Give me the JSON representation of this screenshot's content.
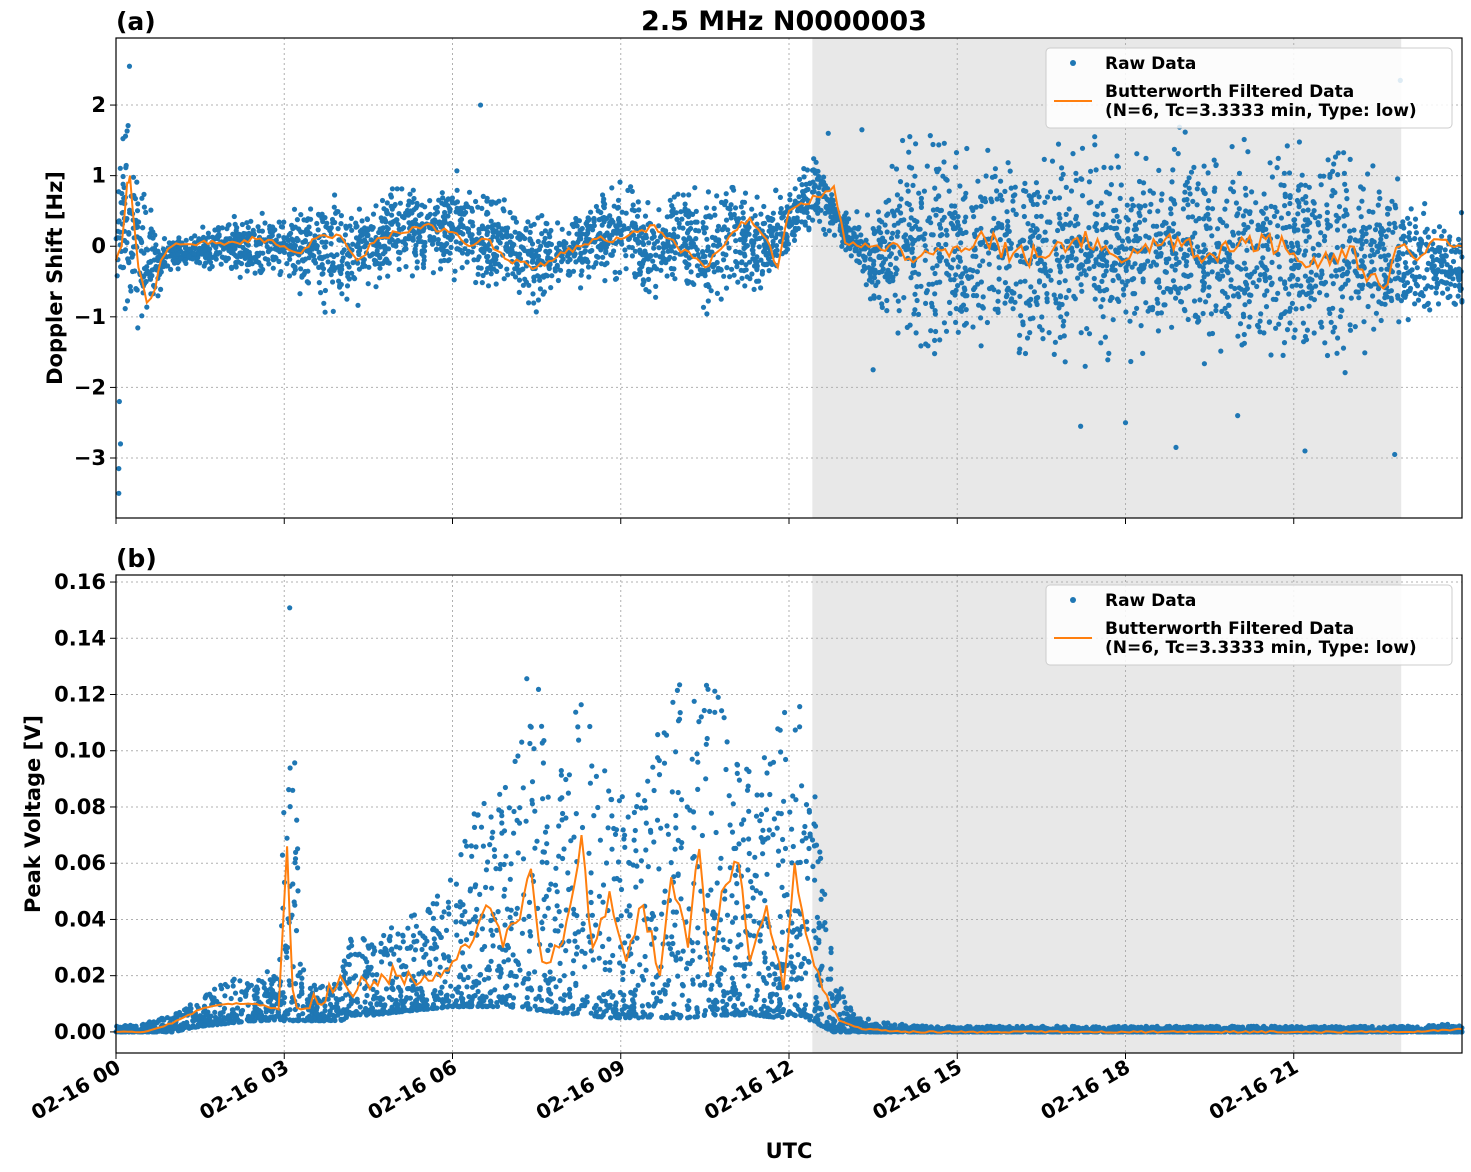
{
  "figure": {
    "title": "2.5 MHz N0000003",
    "xlabel": "UTC",
    "shade_color": "#e8e8e8",
    "raw_color": "#1f77b4",
    "filtered_color": "#ff7f0e"
  },
  "chart_data": [
    {
      "type": "scatter",
      "panel_label": "(a)",
      "ylabel": "Doppler Shift [Hz]",
      "xlim": [
        "02-16 00:00",
        "02-17 00:00"
      ],
      "x_ticks": [
        "02-16 00",
        "02-16 03",
        "02-16 06",
        "02-16 09",
        "02-16 12",
        "02-16 15",
        "02-16 18",
        "02-16 21"
      ],
      "ylim": [
        -3.85,
        2.95
      ],
      "y_ticks": [
        2,
        1,
        0,
        -1,
        -2,
        -3
      ],
      "y_tick_labels": [
        "2",
        "1",
        "0",
        "−1",
        "−2",
        "−3"
      ],
      "grid": true,
      "legend_placement": "top-right",
      "shaded_region": {
        "start": "02-16 12:25",
        "end": "02-16 22:55"
      },
      "series": [
        {
          "name": "Raw Data",
          "style": "points",
          "x_hours": [
            0,
            0.25,
            0.5,
            0.75,
            1,
            1.5,
            2,
            2.5,
            3,
            3.5,
            4,
            4.5,
            5,
            5.5,
            6,
            6.5,
            7,
            7.5,
            8,
            8.5,
            9,
            9.5,
            10,
            10.5,
            11,
            11.5,
            12,
            12.5,
            13,
            13.5,
            14,
            14.5,
            15,
            15.5,
            16,
            16.5,
            17,
            17.5,
            18,
            18.5,
            19,
            19.5,
            20,
            20.5,
            21,
            21.5,
            22,
            22.5,
            23,
            23.5,
            24
          ],
          "upper": [
            1.8,
            2.2,
            1.0,
            0.3,
            0.2,
            0.3,
            0.5,
            0.6,
            0.6,
            0.7,
            1.0,
            0.9,
            1.2,
            0.8,
            1.2,
            1.0,
            0.8,
            0.7,
            0.5,
            0.8,
            1.2,
            0.7,
            1.0,
            1.0,
            1.2,
            0.8,
            1.0,
            1.5,
            0.5,
            0.7,
            1.8,
            2.0,
            2.0,
            1.8,
            1.9,
            1.8,
            1.8,
            1.9,
            1.8,
            1.8,
            1.9,
            1.8,
            1.7,
            1.8,
            1.8,
            1.8,
            1.7,
            1.7,
            1.0,
            0.8,
            0.6
          ],
          "lower": [
            -1.3,
            -1.5,
            -1.4,
            -0.8,
            -0.4,
            -0.4,
            -0.5,
            -0.7,
            -0.6,
            -0.9,
            -1.2,
            -0.8,
            -0.6,
            -0.5,
            -0.6,
            -0.9,
            -0.8,
            -1.2,
            -0.7,
            -0.6,
            -0.6,
            -1.0,
            -0.6,
            -1.2,
            -0.7,
            -0.9,
            -0.3,
            0.2,
            -0.1,
            -1.0,
            -1.7,
            -2.0,
            -2.0,
            -1.9,
            -2.0,
            -1.9,
            -2.0,
            -2.0,
            -2.1,
            -2.0,
            -1.9,
            -2.0,
            -2.0,
            -2.1,
            -2.0,
            -2.0,
            -2.1,
            -1.9,
            -1.5,
            -1.2,
            -1.2
          ],
          "outliers": [
            [
              0.05,
              -3.5
            ],
            [
              0.05,
              -3.15
            ],
            [
              0.08,
              -2.8
            ],
            [
              0.06,
              -2.2
            ],
            [
              0.24,
              2.55
            ],
            [
              13.3,
              1.65
            ],
            [
              13.5,
              -1.75
            ],
            [
              18.0,
              -2.5
            ],
            [
              18.9,
              -2.85
            ],
            [
              21.2,
              -2.9
            ],
            [
              22.8,
              -2.95
            ],
            [
              22.9,
              2.35
            ],
            [
              6.5,
              2.0
            ],
            [
              12.7,
              1.6
            ],
            [
              17.2,
              -2.55
            ],
            [
              20.0,
              -2.4
            ]
          ]
        },
        {
          "name": "Butterworth Filtered Data\n(N=6, Tc=3.3333 min, Type: low)",
          "style": "line",
          "x_hours": [
            0,
            0.1,
            0.2,
            0.25,
            0.3,
            0.4,
            0.55,
            0.7,
            0.8,
            1.0,
            1.5,
            2.0,
            2.5,
            3.0,
            3.3,
            3.5,
            4.0,
            4.3,
            4.6,
            5.0,
            5.5,
            6.0,
            6.3,
            6.6,
            7.0,
            7.5,
            8.0,
            8.5,
            9.0,
            9.3,
            9.6,
            10.0,
            10.5,
            11.0,
            11.3,
            11.6,
            11.8,
            12.0,
            12.5,
            12.8,
            13.0,
            13.5,
            14.0,
            14.5,
            15.0,
            15.5,
            16.0,
            16.5,
            17.0,
            17.5,
            18.0,
            18.5,
            19.0,
            19.5,
            20.0,
            20.5,
            21.0,
            21.5,
            22.0,
            22.3,
            22.6,
            22.9,
            23.2,
            23.5,
            24.0
          ],
          "y": [
            -0.2,
            0.0,
            0.9,
            1.0,
            0.5,
            -0.3,
            -0.8,
            -0.6,
            -0.2,
            0.0,
            0.05,
            0.05,
            0.1,
            0.0,
            -0.1,
            0.1,
            0.15,
            -0.2,
            0.05,
            0.2,
            0.3,
            0.2,
            0.0,
            0.1,
            -0.2,
            -0.3,
            -0.1,
            0.1,
            0.1,
            0.2,
            0.3,
            0.0,
            -0.3,
            0.2,
            0.4,
            0.1,
            -0.3,
            0.5,
            0.7,
            0.85,
            0.05,
            0.0,
            -0.05,
            -0.1,
            0.0,
            0.1,
            -0.1,
            -0.15,
            0.0,
            0.1,
            -0.2,
            0.1,
            0.0,
            -0.1,
            0.0,
            0.1,
            -0.1,
            -0.2,
            0.0,
            -0.5,
            -0.6,
            0.0,
            -0.2,
            0.1,
            0.0
          ]
        }
      ]
    },
    {
      "type": "scatter",
      "panel_label": "(b)",
      "ylabel": "Peak Voltage [V]",
      "xlim": [
        "02-16 00:00",
        "02-17 00:00"
      ],
      "x_ticks": [
        "02-16 00",
        "02-16 03",
        "02-16 06",
        "02-16 09",
        "02-16 12",
        "02-16 15",
        "02-16 18",
        "02-16 21"
      ],
      "ylim": [
        -0.0075,
        0.1625
      ],
      "y_ticks": [
        0.16,
        0.14,
        0.12,
        0.1,
        0.08,
        0.06,
        0.04,
        0.02,
        0.0
      ],
      "y_tick_labels": [
        "0.16",
        "0.14",
        "0.12",
        "0.10",
        "0.08",
        "0.06",
        "0.04",
        "0.02",
        "0.00"
      ],
      "grid": true,
      "legend_placement": "top-right",
      "shaded_region": {
        "start": "02-16 12:25",
        "end": "02-16 22:55"
      },
      "series": [
        {
          "name": "Raw Data",
          "style": "points",
          "x_hours": [
            0,
            0.5,
            1.0,
            1.5,
            2.0,
            2.5,
            2.9,
            3.1,
            3.3,
            3.6,
            4.0,
            4.3,
            4.6,
            5.0,
            5.5,
            6.0,
            6.5,
            7.0,
            7.4,
            7.8,
            8.3,
            8.8,
            9.2,
            9.7,
            10.2,
            10.6,
            11.0,
            11.4,
            11.8,
            12.2,
            12.5,
            12.8,
            13.2,
            13.8,
            14.5,
            23.0,
            24.0
          ],
          "upper": [
            0.002,
            0.003,
            0.006,
            0.012,
            0.02,
            0.018,
            0.025,
            0.155,
            0.025,
            0.015,
            0.025,
            0.04,
            0.03,
            0.04,
            0.045,
            0.055,
            0.085,
            0.09,
            0.14,
            0.095,
            0.12,
            0.09,
            0.085,
            0.12,
            0.13,
            0.135,
            0.1,
            0.09,
            0.11,
            0.125,
            0.08,
            0.02,
            0.006,
            0.003,
            0.002,
            0.002,
            0.003
          ],
          "lower": [
            0.0,
            0.0,
            0.0,
            0.002,
            0.003,
            0.004,
            0.004,
            0.004,
            0.004,
            0.004,
            0.004,
            0.006,
            0.006,
            0.007,
            0.008,
            0.009,
            0.009,
            0.009,
            0.008,
            0.007,
            0.006,
            0.005,
            0.005,
            0.005,
            0.005,
            0.006,
            0.006,
            0.006,
            0.005,
            0.006,
            0.003,
            0.0,
            0.0,
            0.0,
            0.0,
            0.0,
            0.0
          ]
        },
        {
          "name": "Butterworth Filtered Data\n(N=6, Tc=3.3333 min, Type: low)",
          "style": "line",
          "x_hours": [
            0,
            0.5,
            1.0,
            1.5,
            2.0,
            2.5,
            2.9,
            3.05,
            3.15,
            3.3,
            3.6,
            4.0,
            4.3,
            4.6,
            5.0,
            5.5,
            6.0,
            6.3,
            6.6,
            6.9,
            7.2,
            7.4,
            7.6,
            7.9,
            8.1,
            8.3,
            8.5,
            8.8,
            9.1,
            9.4,
            9.7,
            9.9,
            10.2,
            10.4,
            10.6,
            10.8,
            11.1,
            11.3,
            11.6,
            11.9,
            12.1,
            12.3,
            12.6,
            12.9,
            13.3,
            14.0,
            23.0,
            24.0
          ],
          "y": [
            0.0,
            0.0,
            0.003,
            0.008,
            0.01,
            0.01,
            0.008,
            0.066,
            0.015,
            0.008,
            0.01,
            0.02,
            0.015,
            0.018,
            0.02,
            0.02,
            0.025,
            0.03,
            0.045,
            0.03,
            0.04,
            0.058,
            0.025,
            0.03,
            0.045,
            0.07,
            0.03,
            0.05,
            0.025,
            0.045,
            0.02,
            0.055,
            0.03,
            0.065,
            0.02,
            0.05,
            0.06,
            0.025,
            0.045,
            0.015,
            0.06,
            0.035,
            0.015,
            0.004,
            0.001,
            0.0,
            0.0,
            0.001
          ]
        }
      ]
    }
  ]
}
